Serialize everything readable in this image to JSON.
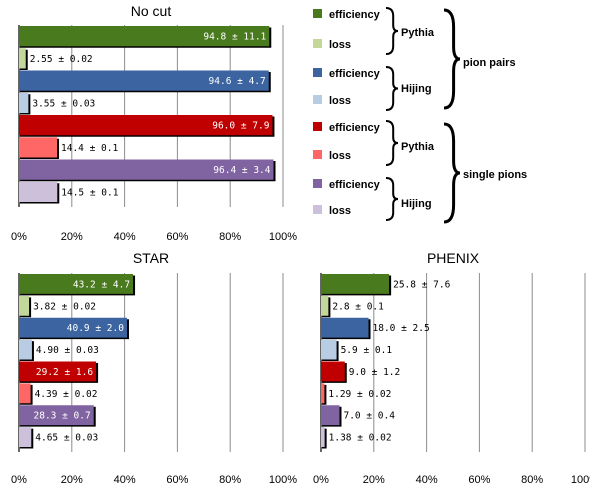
{
  "colors": {
    "pythia_efficiency": "#4a7a1e",
    "pythia_loss": "#c4d79b",
    "hijing_efficiency": "#3b64a0",
    "hijing_loss": "#b8cce4",
    "single_pythia_efficiency": "#c00000",
    "single_pythia_loss": "#ff6666",
    "single_hijing_efficiency": "#8064a2",
    "single_hijing_loss": "#ccc0da"
  },
  "legend": {
    "items": [
      {
        "label": "efficiency",
        "color_key": "pythia_efficiency"
      },
      {
        "label": "loss",
        "color_key": "pythia_loss"
      },
      {
        "label": "efficiency",
        "color_key": "hijing_efficiency"
      },
      {
        "label": "loss",
        "color_key": "hijing_loss"
      },
      {
        "label": "efficiency",
        "color_key": "single_pythia_efficiency"
      },
      {
        "label": "loss",
        "color_key": "single_pythia_loss"
      },
      {
        "label": "efficiency",
        "color_key": "single_hijing_efficiency"
      },
      {
        "label": "loss",
        "color_key": "single_hijing_loss"
      }
    ],
    "generators": [
      "Pythia",
      "Hijing",
      "Pythia",
      "Hijing"
    ],
    "groups": [
      "pion pairs",
      "single pions"
    ]
  },
  "chart_data": [
    {
      "type": "bar",
      "orientation": "horizontal",
      "title": "No cut",
      "xlim": [
        0,
        100
      ],
      "xticks": [
        "0%",
        "20%",
        "40%",
        "60%",
        "80%",
        "100%"
      ],
      "grid": true,
      "series": [
        {
          "value": 94.8,
          "label": "94.8 ± 11.1",
          "color_key": "pythia_efficiency"
        },
        {
          "value": 2.55,
          "label": "2.55 ± 0.02",
          "color_key": "pythia_loss"
        },
        {
          "value": 94.6,
          "label": "94.6 ± 4.7",
          "color_key": "hijing_efficiency"
        },
        {
          "value": 3.55,
          "label": "3.55 ± 0.03",
          "color_key": "hijing_loss"
        },
        {
          "value": 96.0,
          "label": "96.0 ± 7.9",
          "color_key": "single_pythia_efficiency"
        },
        {
          "value": 14.4,
          "label": "14.4 ± 0.1",
          "color_key": "single_pythia_loss"
        },
        {
          "value": 96.4,
          "label": "96.4 ± 3.4",
          "color_key": "single_hijing_efficiency"
        },
        {
          "value": 14.5,
          "label": "14.5 ± 0.1",
          "color_key": "single_hijing_loss"
        }
      ]
    },
    {
      "type": "bar",
      "orientation": "horizontal",
      "title": "STAR",
      "xlim": [
        0,
        100
      ],
      "xticks": [
        "0%",
        "20%",
        "40%",
        "60%",
        "80%",
        "100%"
      ],
      "grid": true,
      "series": [
        {
          "value": 43.2,
          "label": "43.2 ± 4.7",
          "color_key": "pythia_efficiency"
        },
        {
          "value": 3.82,
          "label": "3.82 ± 0.02",
          "color_key": "pythia_loss"
        },
        {
          "value": 40.9,
          "label": "40.9 ± 2.0",
          "color_key": "hijing_efficiency"
        },
        {
          "value": 4.9,
          "label": "4.90 ± 0.03",
          "color_key": "hijing_loss"
        },
        {
          "value": 29.2,
          "label": "29.2 ± 1.6",
          "color_key": "single_pythia_efficiency"
        },
        {
          "value": 4.39,
          "label": "4.39 ± 0.02",
          "color_key": "single_pythia_loss"
        },
        {
          "value": 28.3,
          "label": "28.3 ± 0.7",
          "color_key": "single_hijing_efficiency"
        },
        {
          "value": 4.65,
          "label": "4.65 ± 0.03",
          "color_key": "single_hijing_loss"
        }
      ]
    },
    {
      "type": "bar",
      "orientation": "horizontal",
      "title": "PHENIX",
      "xlim": [
        0,
        100
      ],
      "xticks": [
        "0%",
        "20%",
        "40%",
        "60%",
        "80%",
        "100%"
      ],
      "grid": true,
      "series": [
        {
          "value": 25.8,
          "label": "25.8 ± 7.6",
          "color_key": "pythia_efficiency"
        },
        {
          "value": 2.8,
          "label": "2.8 ± 0.1",
          "color_key": "pythia_loss"
        },
        {
          "value": 18.0,
          "label": "18.0 ± 2.5",
          "color_key": "hijing_efficiency"
        },
        {
          "value": 5.9,
          "label": "5.9 ± 0.1",
          "color_key": "hijing_loss"
        },
        {
          "value": 9.0,
          "label": "9.0 ± 1.2",
          "color_key": "single_pythia_efficiency"
        },
        {
          "value": 1.29,
          "label": "1.29 ± 0.02",
          "color_key": "single_pythia_loss"
        },
        {
          "value": 7.0,
          "label": "7.0 ± 0.4",
          "color_key": "single_hijing_efficiency"
        },
        {
          "value": 1.38,
          "label": "1.38 ± 0.02",
          "color_key": "single_hijing_loss"
        }
      ]
    }
  ]
}
